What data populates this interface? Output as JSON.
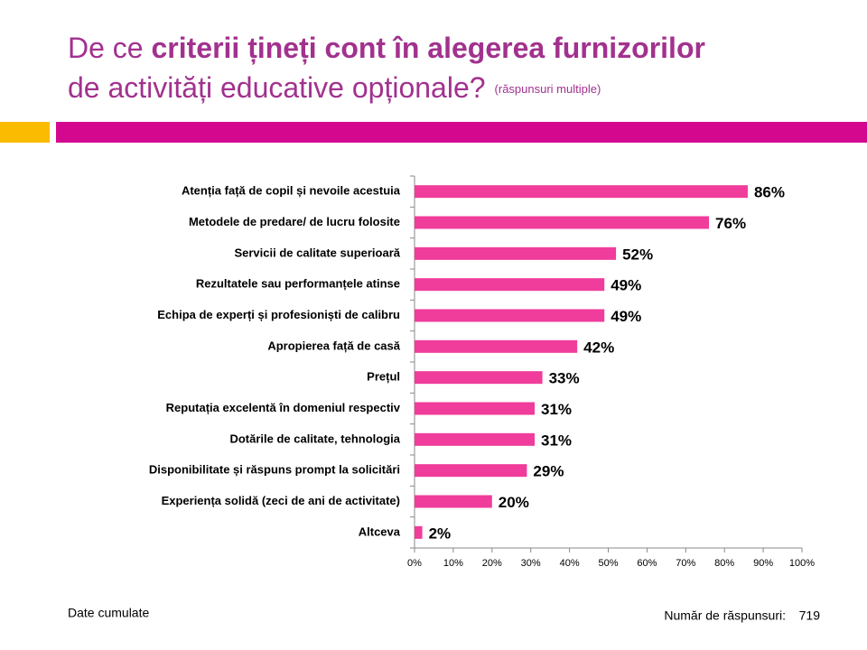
{
  "title_part1": "De ce ",
  "title_bold": "criterii țineți cont în alegerea furnizorilor",
  "title_line2": "de activități educative opționale?",
  "title_note": "(răspunsuri multiple)",
  "chart_data": {
    "type": "barh",
    "categories": [
      "Atenția față de copil și nevoile acestuia",
      "Metodele de predare/ de lucru folosite",
      "Servicii de calitate superioară",
      "Rezultatele sau performanțele atinse",
      "Echipa de experți și profesioniști de calibru",
      "Apropierea față de casă",
      "Prețul",
      "Reputația excelentă în domeniul respectiv",
      "Dotările de calitate, tehnologia",
      "Disponibilitate și răspuns prompt la solicitări",
      "Experiența solidă (zeci de ani de activitate)",
      "Altceva"
    ],
    "values": [
      86,
      76,
      52,
      49,
      49,
      42,
      33,
      31,
      31,
      29,
      20,
      2
    ],
    "value_labels": [
      "86%",
      "76%",
      "52%",
      "49%",
      "49%",
      "42%",
      "33%",
      "31%",
      "31%",
      "29%",
      "20%",
      "2%"
    ],
    "color": "#f03c9a",
    "xlim": [
      0,
      100
    ],
    "xticks": [
      {
        "value": 0,
        "label": "0%"
      },
      {
        "value": 10,
        "label": "10%"
      },
      {
        "value": 20,
        "label": "20%"
      },
      {
        "value": 30,
        "label": "30%"
      },
      {
        "value": 40,
        "label": "40%"
      },
      {
        "value": 50,
        "label": "50%"
      },
      {
        "value": 60,
        "label": "60%"
      },
      {
        "value": 70,
        "label": "70%"
      },
      {
        "value": 80,
        "label": "80%"
      },
      {
        "value": 90,
        "label": "90%"
      },
      {
        "value": 100,
        "label": "100%"
      }
    ]
  },
  "footer": {
    "note": "Date cumulate",
    "respondents_label": "Număr de răspunsuri:",
    "respondents_count": 719
  }
}
